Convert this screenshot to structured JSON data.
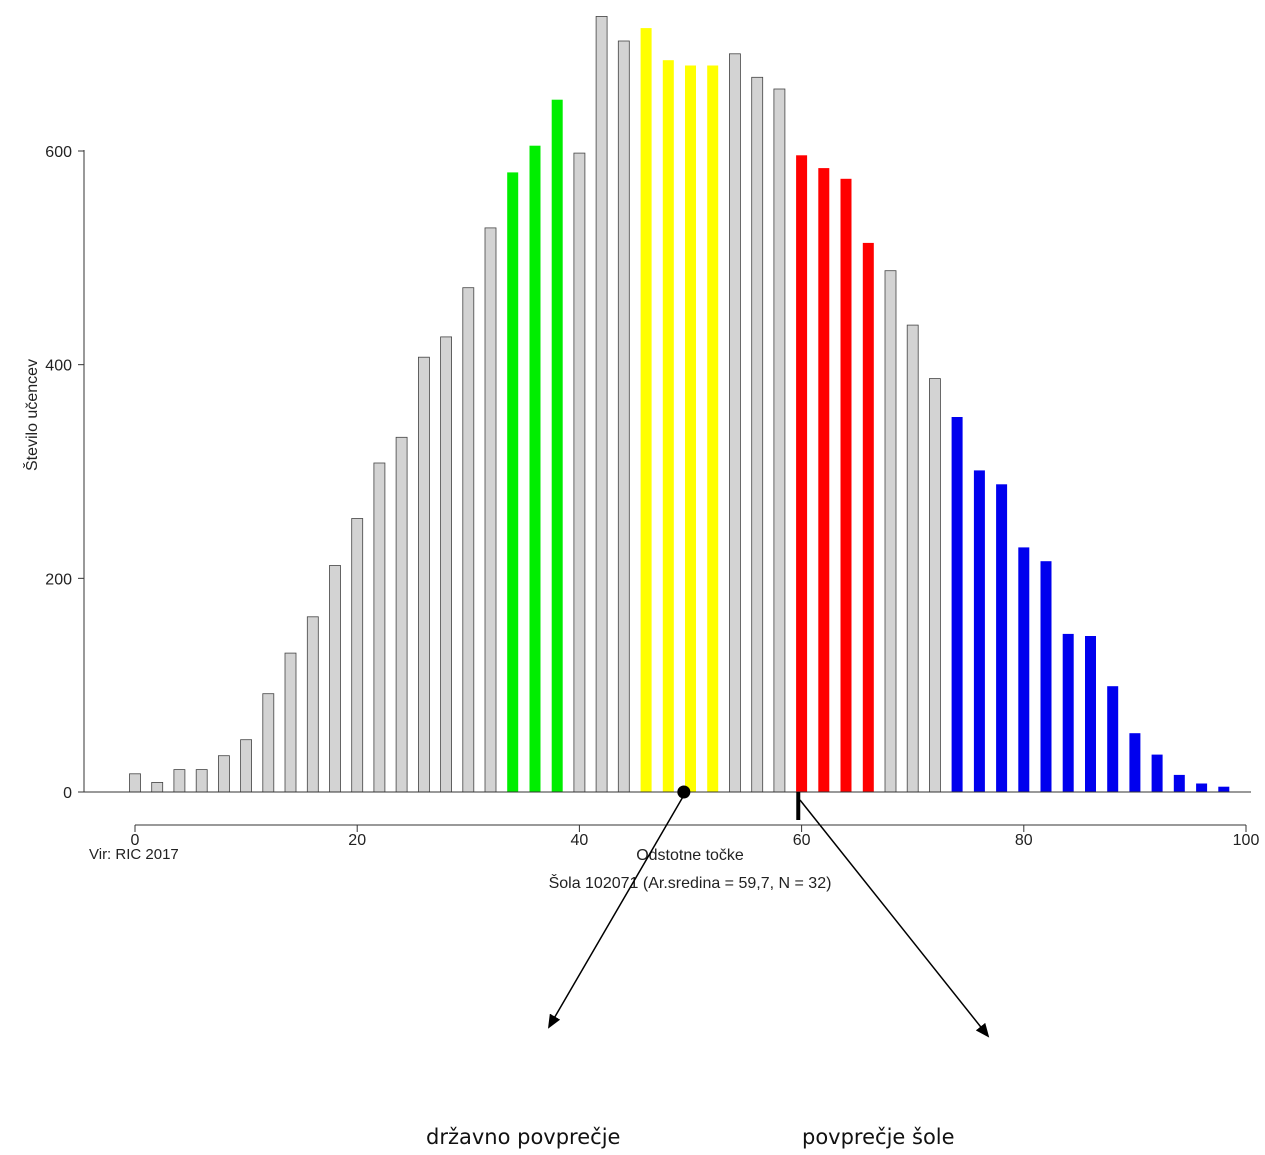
{
  "chart_data": {
    "type": "bar",
    "ylabel": "Število učencev",
    "xlabel": "Odstotne točke",
    "subtitle": "Šola 102071 (Ar.sredina = 59,7, N = 32)",
    "source": "Vir: RIC 2017",
    "xlim": [
      0,
      100
    ],
    "ylim": [
      0,
      730
    ],
    "xticks": [
      0,
      20,
      40,
      60,
      80,
      100
    ],
    "yticks": [
      0,
      200,
      400,
      600
    ],
    "grid": false,
    "legend": "none",
    "colors": {
      "gray": "#d3d3d3",
      "green": "#00ee00",
      "yellow": "#ffff00",
      "red": "#ff0000",
      "blue": "#0000ee"
    },
    "x": [
      0,
      2,
      4,
      6,
      8,
      10,
      12,
      14,
      16,
      18,
      20,
      22,
      24,
      26,
      28,
      30,
      32,
      34,
      36,
      38,
      40,
      42,
      44,
      46,
      48,
      50,
      52,
      54,
      56,
      58,
      60,
      62,
      64,
      66,
      68,
      70,
      72,
      74,
      76,
      78,
      80,
      82,
      84,
      86,
      88,
      90,
      92,
      94,
      96,
      98
    ],
    "values": [
      17,
      9,
      21,
      21,
      34,
      49,
      92,
      130,
      164,
      212,
      256,
      308,
      332,
      407,
      426,
      472,
      528,
      580,
      605,
      648,
      598,
      726,
      703,
      715,
      685,
      680,
      680,
      691,
      669,
      658,
      596,
      584,
      574,
      514,
      488,
      437,
      387,
      351,
      301,
      288,
      229,
      216,
      148,
      146,
      99,
      55,
      35,
      16,
      8,
      5
    ],
    "bar_colors": [
      "gray",
      "gray",
      "gray",
      "gray",
      "gray",
      "gray",
      "gray",
      "gray",
      "gray",
      "gray",
      "gray",
      "gray",
      "gray",
      "gray",
      "gray",
      "gray",
      "gray",
      "green",
      "green",
      "green",
      "gray",
      "gray",
      "gray",
      "yellow",
      "yellow",
      "yellow",
      "yellow",
      "gray",
      "gray",
      "gray",
      "red",
      "red",
      "red",
      "red",
      "gray",
      "gray",
      "gray",
      "blue",
      "blue",
      "blue",
      "blue",
      "blue",
      "blue",
      "blue",
      "blue",
      "blue",
      "blue",
      "blue",
      "blue",
      "blue"
    ],
    "markers": {
      "national_mean_dot_x": 49.4,
      "school_mean_bar_x": 59.7
    }
  },
  "annotations": {
    "national_label": "državno povprečje",
    "school_label": "povprečje šole"
  }
}
